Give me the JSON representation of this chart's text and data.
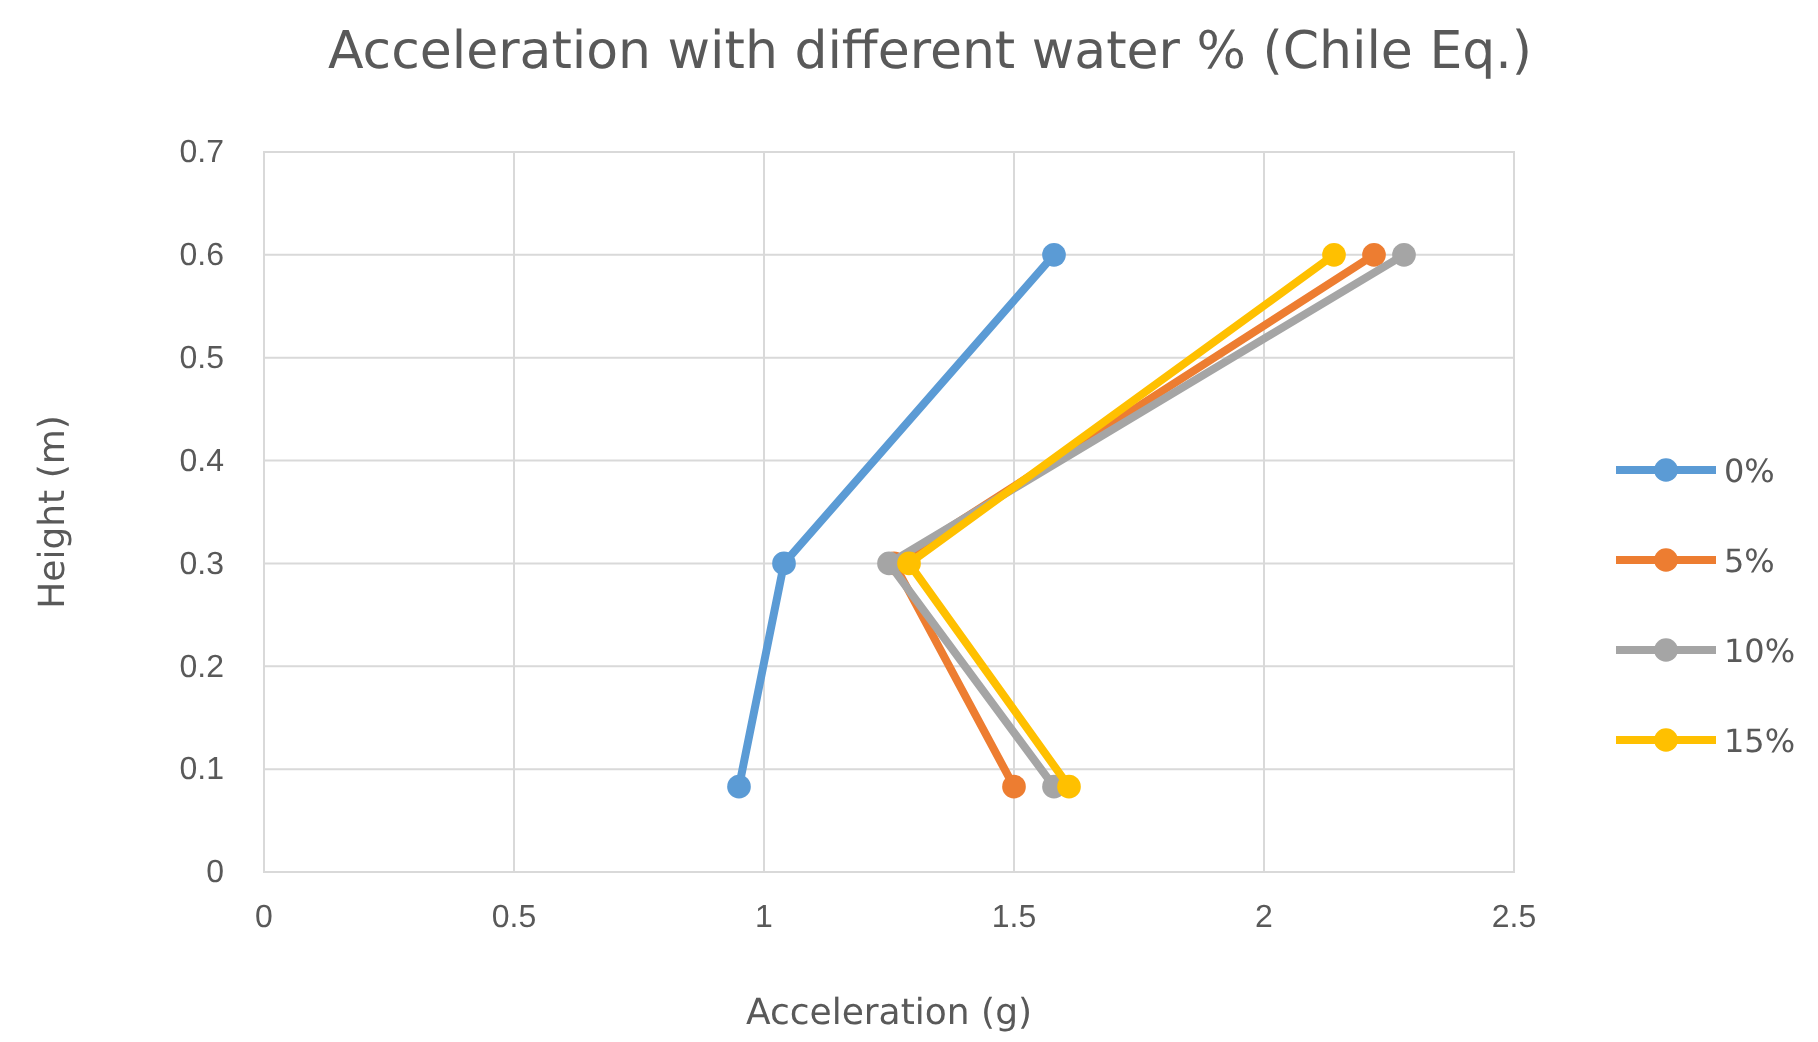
{
  "chart_data": {
    "type": "line",
    "title": "Acceleration with different water % (Chile Eq.)",
    "xlabel": "Acceleration (g)",
    "ylabel": "Height (m)",
    "xlim": [
      0,
      2.5
    ],
    "xticks": [
      0,
      0.5,
      1,
      1.5,
      2,
      2.5
    ],
    "ylim": [
      0,
      0.7
    ],
    "yticks": [
      0,
      0.1,
      0.2,
      0.3,
      0.4,
      0.5,
      0.6,
      0.7
    ],
    "grid": true,
    "legend": "right",
    "marker": "circle",
    "line_style": "solid",
    "series": [
      {
        "name": "0%",
        "color": "#5b9bd5",
        "x": [
          0.95,
          1.04,
          1.58
        ],
        "values": [
          0.083,
          0.3,
          0.6
        ]
      },
      {
        "name": "5%",
        "color": "#ed7d31",
        "x": [
          1.5,
          1.26,
          2.22
        ],
        "values": [
          0.083,
          0.3,
          0.6
        ]
      },
      {
        "name": "10%",
        "color": "#a5a5a5",
        "x": [
          1.58,
          1.25,
          2.28
        ],
        "values": [
          0.083,
          0.3,
          0.6
        ]
      },
      {
        "name": "15%",
        "color": "#ffc000",
        "x": [
          1.61,
          1.29,
          2.14
        ],
        "values": [
          0.083,
          0.3,
          0.6
        ]
      }
    ]
  }
}
